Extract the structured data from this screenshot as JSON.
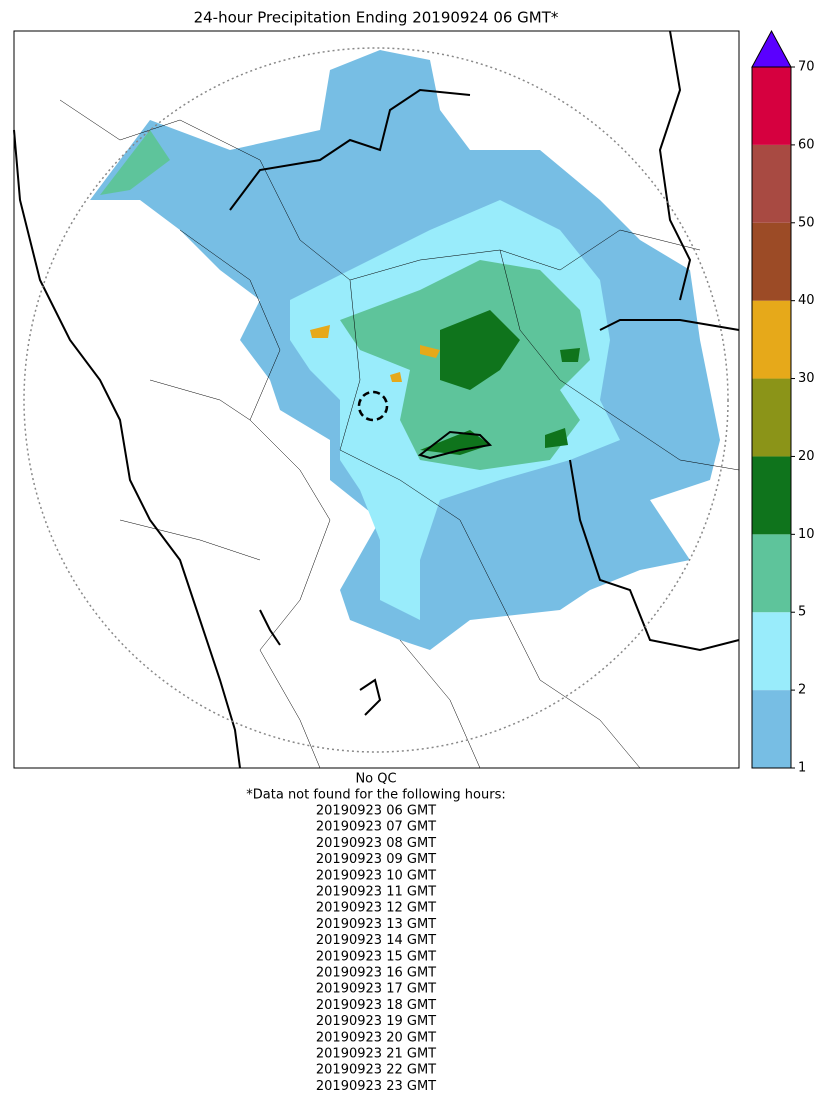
{
  "title": "24-hour Precipitation Ending 20190924 06 GMT*",
  "colorbar": {
    "levels": [
      1,
      2,
      5,
      10,
      20,
      30,
      40,
      50,
      60,
      70
    ],
    "colors": [
      "#77bee4",
      "#99ecfb",
      "#5ec49b",
      "#0f741c",
      "#8b9418",
      "#e6a91a",
      "#9c4b26",
      "#a84a42",
      "#d6003f"
    ],
    "extend_color": "#5a00ff"
  },
  "notes": {
    "qc": "No QC",
    "header": "*Data not found for the following hours:",
    "hours": [
      "20190923 06 GMT",
      "20190923 07 GMT",
      "20190923 08 GMT",
      "20190923 09 GMT",
      "20190923 10 GMT",
      "20190923 11 GMT",
      "20190923 12 GMT",
      "20190923 13 GMT",
      "20190923 14 GMT",
      "20190923 15 GMT",
      "20190923 16 GMT",
      "20190923 17 GMT",
      "20190923 18 GMT",
      "20190923 19 GMT",
      "20190923 20 GMT",
      "20190923 21 GMT",
      "20190923 22 GMT",
      "20190923 23 GMT"
    ]
  }
}
